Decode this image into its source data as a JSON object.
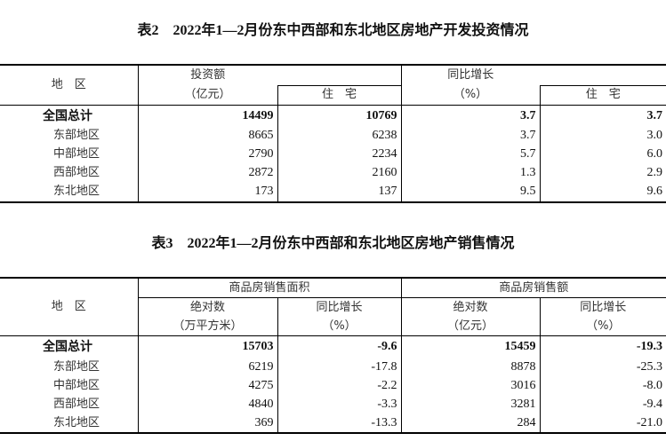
{
  "table2": {
    "title": "表2　2022年1—2月份东中西部和东北地区房地产开发投资情况",
    "h_region": "地　区",
    "h_invest": "投资额",
    "h_invest_unit": "（亿元）",
    "h_residential": "住　宅",
    "h_growth": "同比增长",
    "h_growth_unit": "（%）",
    "h_residential2": "住　宅",
    "rows": [
      {
        "region": "全国总计",
        "invest": "14499",
        "residential": "10769",
        "growth": "3.7",
        "residential_growth": "3.7"
      },
      {
        "region": "东部地区",
        "invest": "8665",
        "residential": "6238",
        "growth": "3.7",
        "residential_growth": "3.0"
      },
      {
        "region": "中部地区",
        "invest": "2790",
        "residential": "2234",
        "growth": "5.7",
        "residential_growth": "6.0"
      },
      {
        "region": "西部地区",
        "invest": "2872",
        "residential": "2160",
        "growth": "1.3",
        "residential_growth": "2.9"
      },
      {
        "region": "东北地区",
        "invest": "173",
        "residential": "137",
        "growth": "9.5",
        "residential_growth": "9.6"
      }
    ]
  },
  "table3": {
    "title": "表3　2022年1—2月份东中西部和东北地区房地产销售情况",
    "h_region": "地　区",
    "h_area": "商品房销售面积",
    "h_sales": "商品房销售额",
    "h_abs": "绝对数",
    "h_area_unit": "（万平方米）",
    "h_growth": "同比增长",
    "h_pct": "（%）",
    "h_abs2": "绝对数",
    "h_sales_unit": "（亿元）",
    "h_growth2": "同比增长",
    "h_pct2": "（%）",
    "rows": [
      {
        "region": "全国总计",
        "area": "15703",
        "area_growth": "-9.6",
        "sales": "15459",
        "sales_growth": "-19.3"
      },
      {
        "region": "东部地区",
        "area": "6219",
        "area_growth": "-17.8",
        "sales": "8878",
        "sales_growth": "-25.3"
      },
      {
        "region": "中部地区",
        "area": "4275",
        "area_growth": "-2.2",
        "sales": "3016",
        "sales_growth": "-8.0"
      },
      {
        "region": "西部地区",
        "area": "4840",
        "area_growth": "-3.3",
        "sales": "3281",
        "sales_growth": "-9.4"
      },
      {
        "region": "东北地区",
        "area": "369",
        "area_growth": "-13.3",
        "sales": "284",
        "sales_growth": "-21.0"
      }
    ]
  }
}
